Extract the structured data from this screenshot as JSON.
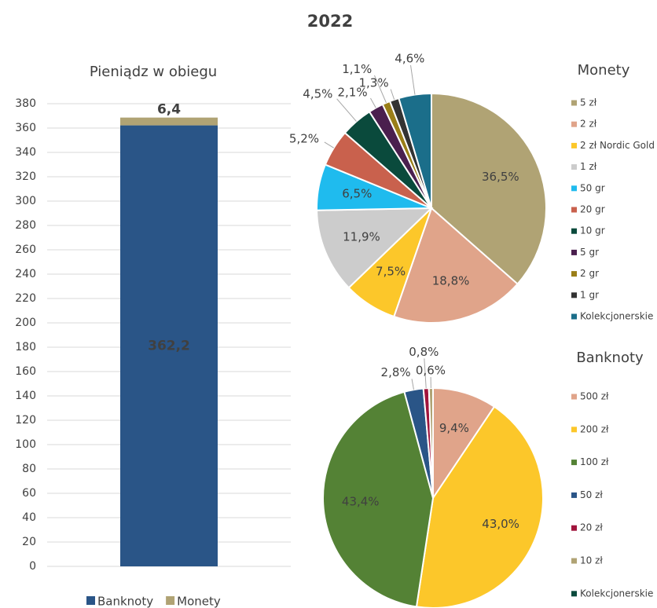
{
  "title": "2022",
  "chart_data": [
    {
      "type": "bar",
      "title": "Pieniądz w obiegu",
      "stacked": true,
      "categories": [
        null
      ],
      "series": [
        {
          "name": "Banknoty",
          "color": "#2a5587",
          "values": [
            362.2
          ],
          "value_labels": [
            "362,2"
          ]
        },
        {
          "name": "Monety",
          "color": "#b0a374",
          "values": [
            6.4
          ],
          "value_labels": [
            "6,4"
          ]
        }
      ],
      "ylim": [
        0,
        380
      ],
      "yticks": [
        0,
        20,
        40,
        60,
        80,
        100,
        120,
        140,
        160,
        180,
        200,
        220,
        240,
        260,
        280,
        300,
        320,
        340,
        360,
        380
      ],
      "grid": true,
      "legend": "bottom"
    },
    {
      "type": "pie",
      "title": "Monety",
      "categories": [
        "5 zł",
        "2 zł",
        "2 zł Nordic Gold",
        "1 zł",
        "50 gr",
        "20 gr",
        "10 gr",
        "5 gr",
        "2 gr",
        "1 gr",
        "Kolekcjonerskie"
      ],
      "values": [
        36.5,
        18.8,
        7.5,
        11.9,
        6.5,
        5.2,
        4.5,
        2.1,
        1.1,
        1.3,
        4.6
      ],
      "value_labels": [
        "36,5%",
        "18,8%",
        "7,5%",
        "11,9%",
        "6,5%",
        "5,2%",
        "4,5%",
        "2,1%",
        "1,1%",
        "1,3%",
        "4,6%"
      ],
      "colors": [
        "#b0a374",
        "#e0a48a",
        "#fcc72a",
        "#cccccc",
        "#1fbbee",
        "#c9614d",
        "#0a4a3c",
        "#4a1f4e",
        "#9a7e18",
        "#333333",
        "#1b6e8a"
      ],
      "legend": "right"
    },
    {
      "type": "pie",
      "title": "Banknoty",
      "categories": [
        "500 zł",
        "200 zł",
        "100 zł",
        "50 zł",
        "20 zł",
        "10 zł",
        "Kolekcjonerskie"
      ],
      "values": [
        9.4,
        43.0,
        43.4,
        2.8,
        0.8,
        0.6,
        0
      ],
      "value_labels": [
        "9,4%",
        "43,0%",
        "43,4%",
        "2,8%",
        "0,8%",
        "0,6%",
        null
      ],
      "colors": [
        "#e0a48a",
        "#fcc72a",
        "#548235",
        "#2a5587",
        "#a0143c",
        "#b0a374",
        "#0a4a3c"
      ],
      "legend": "right"
    }
  ]
}
